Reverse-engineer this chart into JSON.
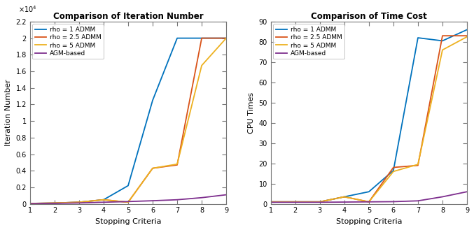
{
  "left_title": "Comparison of Iteration Number",
  "right_title": "Comparison of Time Cost",
  "xlabel": "Stopping Criteria",
  "left_ylabel": "Iteration Number",
  "right_ylabel": "CPU Times",
  "x": [
    1,
    2,
    3,
    4,
    5,
    6,
    7,
    8,
    9
  ],
  "left_rho1": [
    50,
    100,
    200,
    500,
    2200,
    12500,
    20000,
    20000,
    20000
  ],
  "left_rho2p5": [
    50,
    100,
    200,
    500,
    200,
    4300,
    4700,
    20000,
    20000
  ],
  "left_rho5": [
    50,
    100,
    200,
    500,
    200,
    4300,
    4800,
    16700,
    20000
  ],
  "left_agm": [
    30,
    60,
    110,
    200,
    280,
    380,
    500,
    750,
    1100
  ],
  "right_rho1": [
    1.0,
    1.0,
    1.0,
    3.5,
    6.0,
    16.5,
    82.0,
    80.5,
    86.0
  ],
  "right_rho2p5": [
    1.0,
    1.0,
    1.0,
    3.5,
    1.0,
    18.0,
    19.0,
    83.0,
    83.0
  ],
  "right_rho5": [
    1.0,
    1.0,
    1.0,
    3.5,
    1.0,
    16.0,
    19.5,
    76.0,
    82.5
  ],
  "right_agm": [
    0.8,
    0.8,
    0.8,
    0.9,
    1.0,
    1.1,
    1.5,
    3.5,
    6.0
  ],
  "color_rho1": "#0072BD",
  "color_rho2p5": "#D95319",
  "color_rho5": "#EDB120",
  "color_agm": "#7E2F8E",
  "left_ylim": [
    0,
    22000
  ],
  "left_yticks": [
    0,
    2000,
    4000,
    6000,
    8000,
    10000,
    12000,
    14000,
    16000,
    18000,
    20000,
    22000
  ],
  "left_ytick_labels": [
    "0",
    "0.2",
    "0.4",
    "0.6",
    "0.8",
    "1",
    "1.2",
    "1.4",
    "1.6",
    "1.8",
    "2",
    "2.2"
  ],
  "right_ylim": [
    0,
    90
  ],
  "right_yticks": [
    0,
    10,
    20,
    30,
    40,
    50,
    60,
    70,
    80,
    90
  ],
  "xticks": [
    1,
    2,
    3,
    4,
    5,
    6,
    7,
    8,
    9
  ],
  "legend_labels": [
    "rho = 1 ADMM",
    "rho = 2.5 ADMM",
    "rho = 5 ADMM",
    "AGM-based"
  ],
  "linewidth": 1.3,
  "fig_width": 6.77,
  "fig_height": 3.29,
  "dpi": 100
}
